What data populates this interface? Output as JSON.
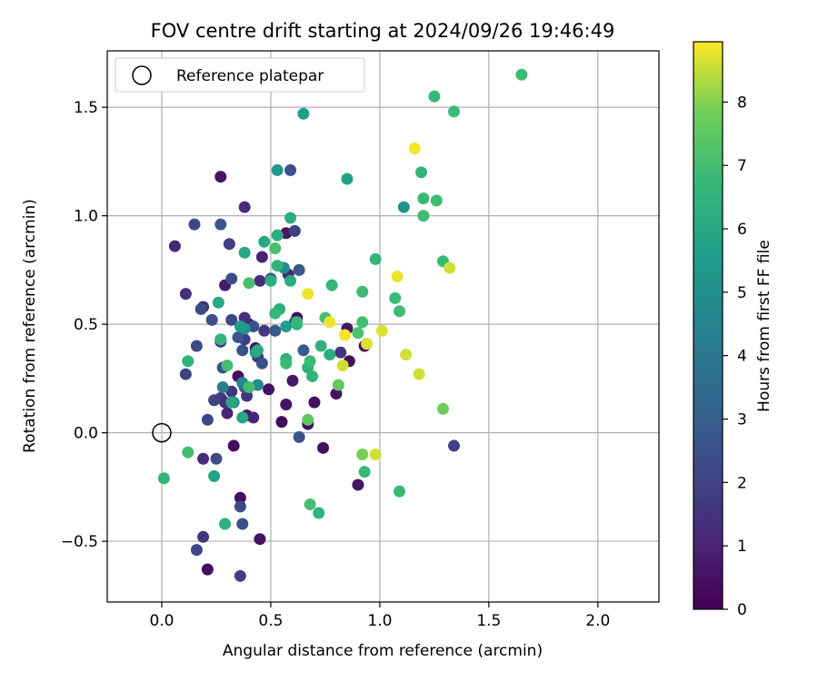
{
  "chart_data": {
    "type": "scatter",
    "title": "FOV centre drift starting at 2024/09/26 19:46:49",
    "xlabel": "Angular distance from reference (arcmin)",
    "ylabel": "Rotation from reference (arcmin)",
    "xlim": [
      -0.25,
      2.28
    ],
    "ylim": [
      -0.78,
      1.76
    ],
    "grid": true,
    "xticks": [
      0.0,
      0.5,
      1.0,
      1.5,
      2.0
    ],
    "xtick_labels": [
      "0.0",
      "0.5",
      "1.0",
      "1.5",
      "2.0"
    ],
    "yticks": [
      -0.5,
      0.0,
      0.5,
      1.0,
      1.5
    ],
    "ytick_labels": [
      "−0.5",
      "0.0",
      "0.5",
      "1.0",
      "1.5"
    ],
    "legend": {
      "placement": "upper left",
      "label": "Reference platepar"
    },
    "reference_point": {
      "x": 0.0,
      "y": 0.0
    },
    "colorbar": {
      "label": "Hours from first FF file",
      "colormap": "viridis",
      "range": [
        0,
        8.95
      ],
      "ticks": [
        0,
        1,
        2,
        3,
        4,
        5,
        6,
        7,
        8
      ],
      "tick_labels": [
        "0",
        "1",
        "2",
        "3",
        "4",
        "5",
        "6",
        "7",
        "8"
      ]
    },
    "points": [
      {
        "x": 0.33,
        "y": -0.06,
        "c": 0.3
      },
      {
        "x": 0.4,
        "y": 0.5,
        "c": 0.2
      },
      {
        "x": 0.43,
        "y": 0.39,
        "c": 0.5
      },
      {
        "x": 0.35,
        "y": 0.26,
        "c": 0.4
      },
      {
        "x": 0.39,
        "y": 0.08,
        "c": 0.6
      },
      {
        "x": 0.49,
        "y": 0.2,
        "c": 0.5
      },
      {
        "x": 0.55,
        "y": 0.05,
        "c": 0.3
      },
      {
        "x": 0.57,
        "y": 0.13,
        "c": 0.5
      },
      {
        "x": 0.6,
        "y": 0.24,
        "c": 0.7
      },
      {
        "x": 0.62,
        "y": 0.53,
        "c": 0.4
      },
      {
        "x": 0.67,
        "y": 0.04,
        "c": 0.3
      },
      {
        "x": 0.7,
        "y": 0.14,
        "c": 0.4
      },
      {
        "x": 0.74,
        "y": -0.07,
        "c": 0.4
      },
      {
        "x": 0.8,
        "y": 0.18,
        "c": 0.5
      },
      {
        "x": 0.85,
        "y": 0.48,
        "c": 0.6
      },
      {
        "x": 0.86,
        "y": 0.33,
        "c": 0.4
      },
      {
        "x": 0.9,
        "y": -0.24,
        "c": 0.6
      },
      {
        "x": 0.93,
        "y": 0.4,
        "c": 0.5
      },
      {
        "x": 0.27,
        "y": 1.18,
        "c": 0.5
      },
      {
        "x": 0.21,
        "y": -0.63,
        "c": 0.3
      },
      {
        "x": 0.36,
        "y": -0.3,
        "c": 0.4
      },
      {
        "x": 0.45,
        "y": -0.49,
        "c": 0.5
      },
      {
        "x": 0.57,
        "y": 0.92,
        "c": 0.6
      },
      {
        "x": 0.29,
        "y": 0.68,
        "c": 0.7
      },
      {
        "x": 0.06,
        "y": 0.86,
        "c": 1.1
      },
      {
        "x": 0.11,
        "y": 0.64,
        "c": 1.4
      },
      {
        "x": 0.19,
        "y": 0.58,
        "c": 1.3
      },
      {
        "x": 0.27,
        "y": 0.42,
        "c": 1.2
      },
      {
        "x": 0.3,
        "y": 0.09,
        "c": 1.0
      },
      {
        "x": 0.38,
        "y": 1.04,
        "c": 1.2
      },
      {
        "x": 0.38,
        "y": 0.53,
        "c": 1.3
      },
      {
        "x": 0.39,
        "y": 0.17,
        "c": 1.5
      },
      {
        "x": 0.42,
        "y": 0.07,
        "c": 1.1
      },
      {
        "x": 0.32,
        "y": 0.19,
        "c": 1.6
      },
      {
        "x": 0.45,
        "y": 0.7,
        "c": 1.3
      },
      {
        "x": 0.46,
        "y": 0.81,
        "c": 1.0
      },
      {
        "x": 0.58,
        "y": 0.73,
        "c": 1.2
      },
      {
        "x": 0.82,
        "y": 0.37,
        "c": 1.5
      },
      {
        "x": 0.19,
        "y": -0.12,
        "c": 1.2
      },
      {
        "x": 0.19,
        "y": -0.48,
        "c": 1.5
      },
      {
        "x": 0.27,
        "y": 0.16,
        "c": 1.7
      },
      {
        "x": 0.29,
        "y": 0.14,
        "c": 1.4
      },
      {
        "x": 0.38,
        "y": 0.43,
        "c": 1.8
      },
      {
        "x": 0.44,
        "y": 0.35,
        "c": 1.2
      },
      {
        "x": 0.47,
        "y": 0.47,
        "c": 1.6
      },
      {
        "x": 0.36,
        "y": -0.66,
        "c": 1.8
      },
      {
        "x": 1.34,
        "y": -0.06,
        "c": 1.9
      },
      {
        "x": 0.61,
        "y": 0.93,
        "c": 1.9
      },
      {
        "x": 0.31,
        "y": 0.87,
        "c": 1.9
      },
      {
        "x": 0.15,
        "y": 0.96,
        "c": 2.1
      },
      {
        "x": 0.11,
        "y": 0.27,
        "c": 2.0
      },
      {
        "x": 0.16,
        "y": 0.4,
        "c": 2.3
      },
      {
        "x": 0.18,
        "y": 0.57,
        "c": 2.2
      },
      {
        "x": 0.21,
        "y": 0.06,
        "c": 2.1
      },
      {
        "x": 0.23,
        "y": 0.52,
        "c": 2.4
      },
      {
        "x": 0.24,
        "y": 0.15,
        "c": 2.0
      },
      {
        "x": 0.25,
        "y": -0.12,
        "c": 2.2
      },
      {
        "x": 0.27,
        "y": 0.96,
        "c": 2.6
      },
      {
        "x": 0.28,
        "y": 0.3,
        "c": 2.5
      },
      {
        "x": 0.32,
        "y": 0.71,
        "c": 2.4
      },
      {
        "x": 0.32,
        "y": 0.52,
        "c": 2.1
      },
      {
        "x": 0.35,
        "y": 0.44,
        "c": 2.7
      },
      {
        "x": 0.36,
        "y": -0.34,
        "c": 2.2
      },
      {
        "x": 0.37,
        "y": -0.42,
        "c": 2.5
      },
      {
        "x": 0.37,
        "y": 0.38,
        "c": 2.6
      },
      {
        "x": 0.42,
        "y": 0.49,
        "c": 2.5
      },
      {
        "x": 0.46,
        "y": 0.32,
        "c": 2.4
      },
      {
        "x": 0.52,
        "y": 0.47,
        "c": 2.8
      },
      {
        "x": 0.59,
        "y": 1.21,
        "c": 2.5
      },
      {
        "x": 0.61,
        "y": 0.51,
        "c": 2.4
      },
      {
        "x": 0.63,
        "y": 0.75,
        "c": 2.8
      },
      {
        "x": 0.63,
        "y": -0.02,
        "c": 2.7
      },
      {
        "x": 0.65,
        "y": 0.38,
        "c": 2.8
      },
      {
        "x": 0.16,
        "y": -0.54,
        "c": 2.1
      },
      {
        "x": 0.38,
        "y": 0.21,
        "c": 3.1
      },
      {
        "x": 0.5,
        "y": 0.71,
        "c": 3.0
      },
      {
        "x": 0.28,
        "y": 0.21,
        "c": 4.3
      },
      {
        "x": 0.37,
        "y": 0.23,
        "c": 4.6
      },
      {
        "x": 0.44,
        "y": 0.22,
        "c": 4.8
      },
      {
        "x": 0.33,
        "y": 0.14,
        "c": 5.0
      },
      {
        "x": 0.38,
        "y": 0.48,
        "c": 5.2
      },
      {
        "x": 0.27,
        "y": 0.43,
        "c": 5.4
      },
      {
        "x": 0.36,
        "y": 0.49,
        "c": 5.5
      },
      {
        "x": 0.43,
        "y": 0.37,
        "c": 5.3
      },
      {
        "x": 0.56,
        "y": 0.76,
        "c": 5.0
      },
      {
        "x": 0.57,
        "y": 0.49,
        "c": 5.6
      },
      {
        "x": 0.53,
        "y": 1.21,
        "c": 5.4
      },
      {
        "x": 0.65,
        "y": 1.47,
        "c": 5.6
      },
      {
        "x": 0.85,
        "y": 1.17,
        "c": 5.8
      },
      {
        "x": 1.11,
        "y": 1.04,
        "c": 5.2
      },
      {
        "x": 0.24,
        "y": -0.2,
        "c": 5.8
      },
      {
        "x": 0.37,
        "y": 0.07,
        "c": 5.9
      },
      {
        "x": 0.38,
        "y": 0.83,
        "c": 6.0
      },
      {
        "x": 0.26,
        "y": 0.6,
        "c": 6.1
      },
      {
        "x": 0.32,
        "y": 0.14,
        "c": 6.0
      },
      {
        "x": 0.44,
        "y": 0.38,
        "c": 6.2
      },
      {
        "x": 0.47,
        "y": 0.88,
        "c": 6.1
      },
      {
        "x": 0.5,
        "y": 0.7,
        "c": 6.3
      },
      {
        "x": 0.53,
        "y": 0.91,
        "c": 6.2
      },
      {
        "x": 0.53,
        "y": 0.77,
        "c": 6.4
      },
      {
        "x": 0.54,
        "y": 0.57,
        "c": 6.3
      },
      {
        "x": 0.57,
        "y": 0.34,
        "c": 6.4
      },
      {
        "x": 0.59,
        "y": 0.99,
        "c": 6.3
      },
      {
        "x": 0.59,
        "y": 0.7,
        "c": 6.2
      },
      {
        "x": 0.62,
        "y": 0.5,
        "c": 6.4
      },
      {
        "x": 0.67,
        "y": 0.3,
        "c": 6.5
      },
      {
        "x": 0.69,
        "y": 0.26,
        "c": 6.6
      },
      {
        "x": 0.73,
        "y": 0.4,
        "c": 6.5
      },
      {
        "x": 0.77,
        "y": 0.36,
        "c": 6.3
      },
      {
        "x": 0.12,
        "y": 0.33,
        "c": 6.5
      },
      {
        "x": 0.29,
        "y": -0.42,
        "c": 6.4
      },
      {
        "x": 0.72,
        "y": -0.37,
        "c": 6.5
      },
      {
        "x": 0.01,
        "y": -0.21,
        "c": 6.6
      },
      {
        "x": 0.27,
        "y": 0.43,
        "c": 6.6
      },
      {
        "x": 0.52,
        "y": 0.55,
        "c": 6.7
      },
      {
        "x": 0.57,
        "y": 0.32,
        "c": 6.8
      },
      {
        "x": 0.62,
        "y": 0.51,
        "c": 6.7
      },
      {
        "x": 0.68,
        "y": 0.33,
        "c": 6.8
      },
      {
        "x": 0.78,
        "y": 0.68,
        "c": 6.7
      },
      {
        "x": 0.92,
        "y": 0.65,
        "c": 6.9
      },
      {
        "x": 0.93,
        "y": -0.18,
        "c": 6.8
      },
      {
        "x": 0.98,
        "y": 0.8,
        "c": 6.6
      },
      {
        "x": 1.07,
        "y": 0.62,
        "c": 6.8
      },
      {
        "x": 1.09,
        "y": 0.56,
        "c": 6.9
      },
      {
        "x": 1.09,
        "y": -0.27,
        "c": 6.8
      },
      {
        "x": 1.19,
        "y": 1.2,
        "c": 6.6
      },
      {
        "x": 1.2,
        "y": 1.08,
        "c": 6.8
      },
      {
        "x": 1.2,
        "y": 1.0,
        "c": 6.9
      },
      {
        "x": 1.25,
        "y": 1.55,
        "c": 6.7
      },
      {
        "x": 1.26,
        "y": 1.07,
        "c": 6.9
      },
      {
        "x": 1.29,
        "y": 0.79,
        "c": 6.8
      },
      {
        "x": 1.34,
        "y": 1.48,
        "c": 6.8
      },
      {
        "x": 1.65,
        "y": 1.65,
        "c": 6.9
      },
      {
        "x": 0.12,
        "y": -0.09,
        "c": 7.0
      },
      {
        "x": 0.3,
        "y": 0.31,
        "c": 7.0
      },
      {
        "x": 0.4,
        "y": 0.69,
        "c": 7.1
      },
      {
        "x": 0.4,
        "y": 0.21,
        "c": 7.0
      },
      {
        "x": 0.52,
        "y": 0.85,
        "c": 7.1
      },
      {
        "x": 0.68,
        "y": -0.33,
        "c": 7.0
      },
      {
        "x": 0.75,
        "y": 0.53,
        "c": 7.1
      },
      {
        "x": 0.9,
        "y": 0.46,
        "c": 7.2
      },
      {
        "x": 0.92,
        "y": 0.51,
        "c": 7.0
      },
      {
        "x": 0.67,
        "y": 0.06,
        "c": 7.5
      },
      {
        "x": 0.81,
        "y": 0.22,
        "c": 7.6
      },
      {
        "x": 0.92,
        "y": -0.1,
        "c": 7.9
      },
      {
        "x": 1.29,
        "y": 0.11,
        "c": 7.8
      },
      {
        "x": 0.67,
        "y": 0.64,
        "c": 8.8
      },
      {
        "x": 0.77,
        "y": 0.51,
        "c": 8.8
      },
      {
        "x": 0.84,
        "y": 0.45,
        "c": 8.9
      },
      {
        "x": 0.83,
        "y": 0.31,
        "c": 8.6
      },
      {
        "x": 0.94,
        "y": 0.41,
        "c": 8.7
      },
      {
        "x": 0.98,
        "y": -0.1,
        "c": 8.6
      },
      {
        "x": 1.01,
        "y": 0.47,
        "c": 8.7
      },
      {
        "x": 1.08,
        "y": 0.72,
        "c": 8.8
      },
      {
        "x": 1.12,
        "y": 0.36,
        "c": 8.6
      },
      {
        "x": 1.16,
        "y": 1.31,
        "c": 8.9
      },
      {
        "x": 1.18,
        "y": 0.27,
        "c": 8.6
      },
      {
        "x": 1.32,
        "y": 0.76,
        "c": 8.6
      }
    ]
  }
}
